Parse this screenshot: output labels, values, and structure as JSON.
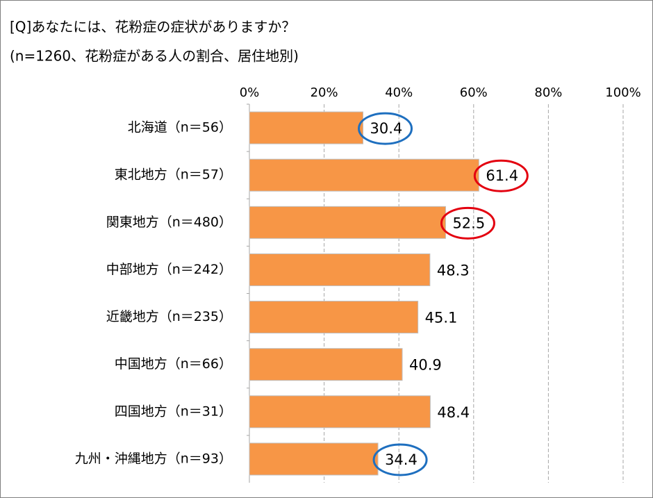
{
  "chart_data": {
    "type": "bar",
    "orientation": "horizontal",
    "title": "[Q]あなたには、花粉症の症状がありますか？",
    "subtitle": "(n=1260、花粉症がある人の割合、居住地別)",
    "categories": [
      "北海道（n＝56）",
      "東北地方（n＝57）",
      "関東地方（n＝480）",
      "中部地方（n＝242）",
      "近畿地方（n＝235）",
      "中国地方（n＝66）",
      "四国地方（n＝31）",
      "九州・沖縄地方（n＝93）"
    ],
    "values": [
      30.4,
      61.4,
      52.5,
      48.3,
      45.1,
      40.9,
      48.4,
      34.4
    ],
    "value_label_circles": [
      "#1e6fbf",
      "#e3000f",
      "#e3000f",
      null,
      null,
      null,
      null,
      "#1e6fbf"
    ],
    "color": "#f79646",
    "xlim": [
      0,
      100
    ],
    "xticks": [
      {
        "value": 0,
        "label": "0%"
      },
      {
        "value": 20,
        "label": "20%"
      },
      {
        "value": 40,
        "label": "40%"
      },
      {
        "value": 60,
        "label": "60%"
      },
      {
        "value": 80,
        "label": "80%"
      },
      {
        "value": 100,
        "label": "100%"
      }
    ],
    "grid": true
  }
}
